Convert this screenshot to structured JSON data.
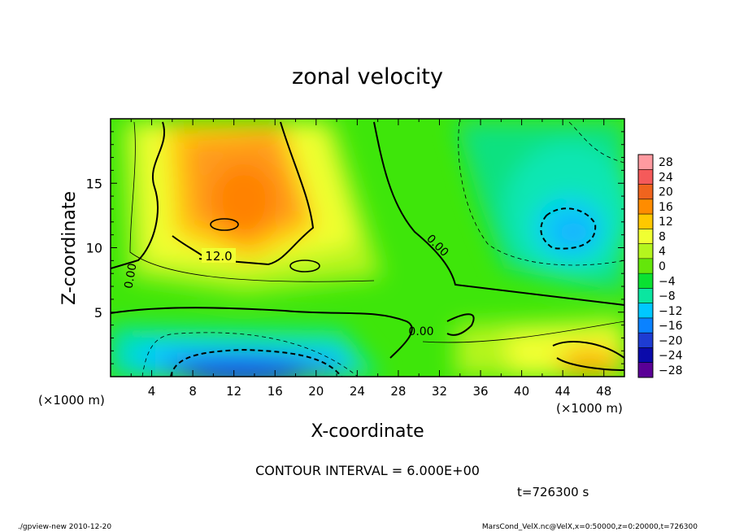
{
  "chart_data": {
    "type": "heatmap",
    "title": "zonal velocity",
    "xlabel": "X-coordinate",
    "ylabel": "Z-coordinate",
    "x_unit": "(×1000 m)",
    "z_unit": "(×1000 m)",
    "x_ticks": [
      "4",
      "8",
      "12",
      "16",
      "20",
      "24",
      "28",
      "32",
      "36",
      "40",
      "44",
      "48"
    ],
    "z_ticks": [
      "5",
      "10",
      "15"
    ],
    "xlim": [
      0,
      50
    ],
    "zlim": [
      0,
      20
    ],
    "contour_labels": [
      "12.0",
      "0.00",
      "0.00",
      "0.00"
    ],
    "contour_interval": "CONTOUR INTERVAL = 6.000E+00",
    "time": "t=726300 s",
    "colorbar": {
      "levels": [
        "28",
        "24",
        "20",
        "16",
        "12",
        "8",
        "4",
        "0",
        "−4",
        "−8",
        "−12",
        "−16",
        "−20",
        "−24",
        "−28"
      ],
      "colors": [
        "#ff9aa0",
        "#f55a5a",
        "#f0641e",
        "#ff8c00",
        "#ffc800",
        "#f0ff32",
        "#b4f51e",
        "#64e60a",
        "#0ae132",
        "#0ae6a0",
        "#00c8ff",
        "#0a82ff",
        "#1e3cd2",
        "#0a0aaa",
        "#5a0096"
      ]
    }
  },
  "footer": {
    "left": "./gpview-new  2010-12-20",
    "right": "MarsCond_VelX.nc@VelX,x=0:50000,z=0:20000,t=726300"
  }
}
